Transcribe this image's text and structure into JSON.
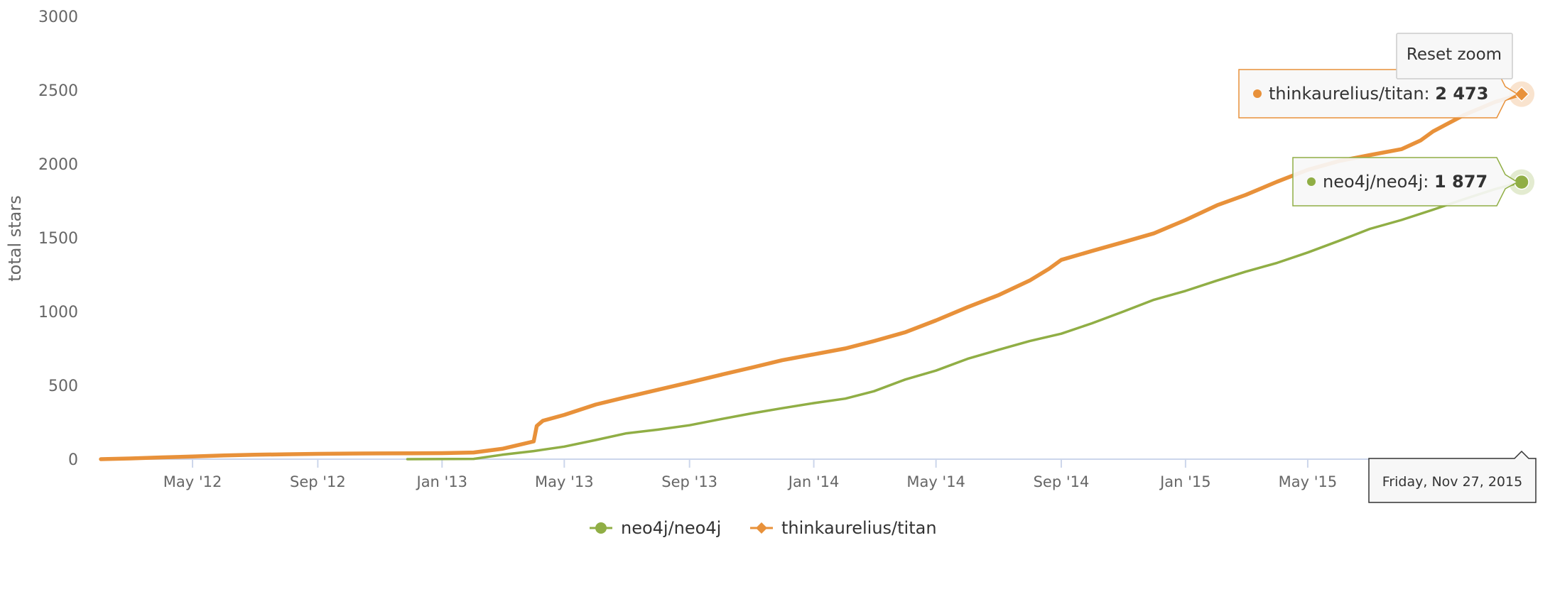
{
  "chart_data": {
    "type": "line",
    "ylabel": "total stars",
    "ylim": [
      0,
      3000
    ],
    "yticks": [
      0,
      500,
      1000,
      1500,
      2000,
      2500,
      3000
    ],
    "xlim": [
      "2012-02-01",
      "2015-11-27"
    ],
    "xticks": [
      {
        "date": "2012-05-01",
        "label": "May '12"
      },
      {
        "date": "2012-09-01",
        "label": "Sep '12"
      },
      {
        "date": "2013-01-01",
        "label": "Jan '13"
      },
      {
        "date": "2013-05-01",
        "label": "May '13"
      },
      {
        "date": "2013-09-01",
        "label": "Sep '13"
      },
      {
        "date": "2014-01-01",
        "label": "Jan '14"
      },
      {
        "date": "2014-05-01",
        "label": "May '14"
      },
      {
        "date": "2014-09-01",
        "label": "Sep '14"
      },
      {
        "date": "2015-01-01",
        "label": "Jan '15"
      },
      {
        "date": "2015-05-01",
        "label": "May '15"
      }
    ],
    "series": [
      {
        "name": "neo4j/neo4j",
        "color": "#90ae45",
        "marker": "circle",
        "points": [
          [
            "2012-11-28",
            0
          ],
          [
            "2013-02-01",
            2
          ],
          [
            "2013-03-01",
            30
          ],
          [
            "2013-04-01",
            55
          ],
          [
            "2013-05-01",
            85
          ],
          [
            "2013-06-01",
            130
          ],
          [
            "2013-07-01",
            175
          ],
          [
            "2013-08-01",
            200
          ],
          [
            "2013-09-01",
            230
          ],
          [
            "2013-10-01",
            270
          ],
          [
            "2013-11-01",
            310
          ],
          [
            "2013-12-01",
            345
          ],
          [
            "2014-01-01",
            380
          ],
          [
            "2014-02-01",
            410
          ],
          [
            "2014-03-01",
            460
          ],
          [
            "2014-04-01",
            540
          ],
          [
            "2014-05-01",
            600
          ],
          [
            "2014-06-01",
            680
          ],
          [
            "2014-07-01",
            740
          ],
          [
            "2014-08-01",
            800
          ],
          [
            "2014-09-01",
            850
          ],
          [
            "2014-10-01",
            920
          ],
          [
            "2014-11-01",
            1000
          ],
          [
            "2014-12-01",
            1080
          ],
          [
            "2015-01-01",
            1140
          ],
          [
            "2015-02-01",
            1210
          ],
          [
            "2015-03-01",
            1270
          ],
          [
            "2015-04-01",
            1330
          ],
          [
            "2015-05-01",
            1400
          ],
          [
            "2015-06-01",
            1480
          ],
          [
            "2015-07-01",
            1560
          ],
          [
            "2015-08-01",
            1620
          ],
          [
            "2015-09-01",
            1690
          ],
          [
            "2015-10-01",
            1760
          ],
          [
            "2015-11-01",
            1830
          ],
          [
            "2015-11-27",
            1877
          ]
        ]
      },
      {
        "name": "thinkaurelius/titan",
        "color": "#e8913a",
        "marker": "diamond",
        "points": [
          [
            "2012-02-01",
            0
          ],
          [
            "2012-03-01",
            5
          ],
          [
            "2012-04-01",
            12
          ],
          [
            "2012-05-01",
            18
          ],
          [
            "2012-06-01",
            25
          ],
          [
            "2012-07-01",
            30
          ],
          [
            "2012-08-01",
            33
          ],
          [
            "2012-09-01",
            36
          ],
          [
            "2012-10-01",
            38
          ],
          [
            "2012-11-01",
            39
          ],
          [
            "2012-12-01",
            40
          ],
          [
            "2013-01-01",
            41
          ],
          [
            "2013-02-01",
            45
          ],
          [
            "2013-03-01",
            70
          ],
          [
            "2013-04-01",
            120
          ],
          [
            "2013-04-04",
            225
          ],
          [
            "2013-04-10",
            260
          ],
          [
            "2013-05-01",
            300
          ],
          [
            "2013-06-01",
            370
          ],
          [
            "2013-07-01",
            420
          ],
          [
            "2013-08-01",
            470
          ],
          [
            "2013-09-01",
            520
          ],
          [
            "2013-10-01",
            570
          ],
          [
            "2013-11-01",
            620
          ],
          [
            "2013-12-01",
            670
          ],
          [
            "2014-01-01",
            710
          ],
          [
            "2014-02-01",
            750
          ],
          [
            "2014-03-01",
            800
          ],
          [
            "2014-04-01",
            860
          ],
          [
            "2014-05-01",
            940
          ],
          [
            "2014-06-01",
            1030
          ],
          [
            "2014-07-01",
            1110
          ],
          [
            "2014-08-01",
            1210
          ],
          [
            "2014-08-20",
            1290
          ],
          [
            "2014-09-01",
            1350
          ],
          [
            "2014-10-01",
            1410
          ],
          [
            "2014-11-01",
            1470
          ],
          [
            "2014-12-01",
            1530
          ],
          [
            "2015-01-01",
            1620
          ],
          [
            "2015-02-01",
            1720
          ],
          [
            "2015-03-01",
            1790
          ],
          [
            "2015-04-01",
            1880
          ],
          [
            "2015-05-01",
            1960
          ],
          [
            "2015-06-01",
            2020
          ],
          [
            "2015-07-01",
            2060
          ],
          [
            "2015-08-01",
            2100
          ],
          [
            "2015-08-20",
            2160
          ],
          [
            "2015-09-01",
            2220
          ],
          [
            "2015-10-01",
            2330
          ],
          [
            "2015-11-01",
            2420
          ],
          [
            "2015-11-27",
            2473
          ]
        ]
      }
    ],
    "legend": {
      "position": "bottom-center"
    },
    "tooltip": {
      "date_label": "Friday, Nov 27, 2015",
      "entries": [
        {
          "series": "thinkaurelius/titan",
          "value": "2 473"
        },
        {
          "series": "neo4j/neo4j",
          "value": "1 877"
        }
      ]
    }
  },
  "ui": {
    "reset_zoom_label": "Reset zoom"
  }
}
